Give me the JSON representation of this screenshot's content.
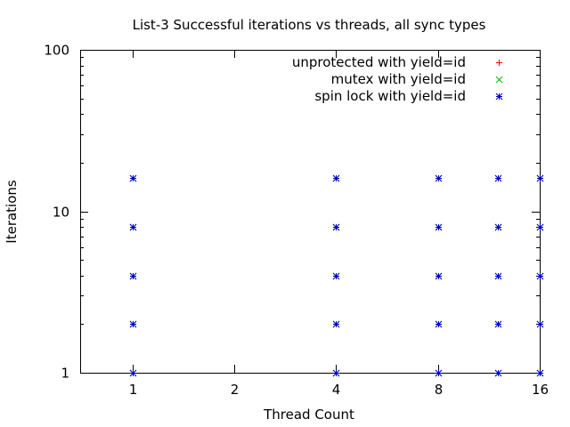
{
  "chart_data": {
    "type": "scatter",
    "title": "List-3 Successful iterations vs threads, all sync types",
    "xlabel": "Thread Count",
    "ylabel": "Iterations",
    "xscale": "log2",
    "yscale": "log10",
    "xlim": [
      0.7,
      16
    ],
    "ylim": [
      1,
      100
    ],
    "x_ticks": [
      1,
      2,
      4,
      8,
      16
    ],
    "y_ticks": [
      1,
      10,
      100
    ],
    "y_minor_ticks": [
      2,
      3,
      4,
      5,
      6,
      7,
      8,
      9,
      20,
      30,
      40,
      50,
      60,
      70,
      80,
      90
    ],
    "grid": false,
    "legend_position": "top-right",
    "series": [
      {
        "name": "unprotected with yield=id",
        "color": "#ff0000",
        "marker": "plus",
        "points": []
      },
      {
        "name": "mutex with yield=id",
        "color": "#00c000",
        "marker": "cross",
        "points": [
          {
            "x": 1,
            "y": 1
          },
          {
            "x": 1,
            "y": 2
          },
          {
            "x": 1,
            "y": 4
          },
          {
            "x": 1,
            "y": 8
          },
          {
            "x": 1,
            "y": 16
          },
          {
            "x": 4,
            "y": 1
          },
          {
            "x": 4,
            "y": 2
          },
          {
            "x": 4,
            "y": 4
          },
          {
            "x": 4,
            "y": 8
          },
          {
            "x": 4,
            "y": 16
          },
          {
            "x": 8,
            "y": 1
          },
          {
            "x": 8,
            "y": 2
          },
          {
            "x": 8,
            "y": 4
          },
          {
            "x": 8,
            "y": 8
          },
          {
            "x": 8,
            "y": 16
          },
          {
            "x": 12,
            "y": 1
          },
          {
            "x": 12,
            "y": 2
          },
          {
            "x": 12,
            "y": 4
          },
          {
            "x": 12,
            "y": 8
          },
          {
            "x": 12,
            "y": 16
          },
          {
            "x": 16,
            "y": 1
          },
          {
            "x": 16,
            "y": 2
          },
          {
            "x": 16,
            "y": 4
          },
          {
            "x": 16,
            "y": 8
          },
          {
            "x": 16,
            "y": 16
          }
        ]
      },
      {
        "name": "spin lock with yield=id",
        "color": "#0000c0",
        "marker": "star",
        "points": [
          {
            "x": 1,
            "y": 1
          },
          {
            "x": 1,
            "y": 2
          },
          {
            "x": 1,
            "y": 4
          },
          {
            "x": 1,
            "y": 8
          },
          {
            "x": 1,
            "y": 16
          },
          {
            "x": 4,
            "y": 1
          },
          {
            "x": 4,
            "y": 2
          },
          {
            "x": 4,
            "y": 4
          },
          {
            "x": 4,
            "y": 8
          },
          {
            "x": 4,
            "y": 16
          },
          {
            "x": 8,
            "y": 1
          },
          {
            "x": 8,
            "y": 2
          },
          {
            "x": 8,
            "y": 4
          },
          {
            "x": 8,
            "y": 8
          },
          {
            "x": 8,
            "y": 16
          },
          {
            "x": 12,
            "y": 1
          },
          {
            "x": 12,
            "y": 2
          },
          {
            "x": 12,
            "y": 4
          },
          {
            "x": 12,
            "y": 8
          },
          {
            "x": 12,
            "y": 16
          },
          {
            "x": 16,
            "y": 1
          },
          {
            "x": 16,
            "y": 2
          },
          {
            "x": 16,
            "y": 4
          },
          {
            "x": 16,
            "y": 8
          },
          {
            "x": 16,
            "y": 16
          }
        ]
      }
    ]
  }
}
